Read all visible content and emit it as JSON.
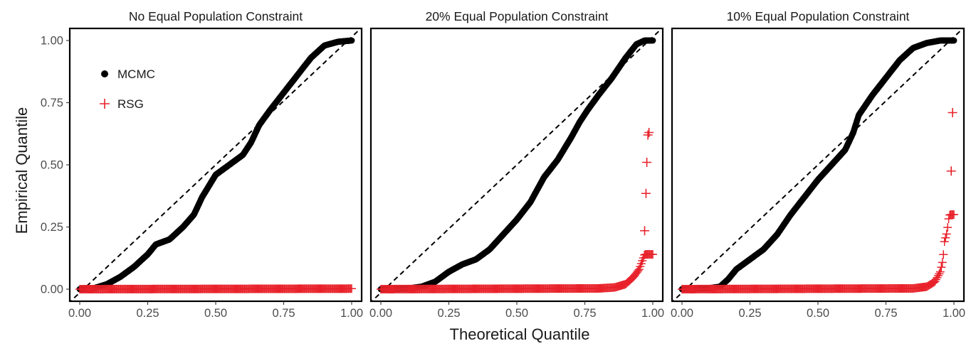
{
  "chart_data": {
    "type": "scatter",
    "xlabel": "Theoretical Quantile",
    "ylabel": "Empirical Quantile",
    "xlim": [
      0,
      1
    ],
    "ylim": [
      0,
      1
    ],
    "x_ticks": [
      "0.00",
      "0.25",
      "0.50",
      "0.75",
      "1.00"
    ],
    "y_ticks": [
      "0.00",
      "0.25",
      "0.50",
      "0.75",
      "1.00"
    ],
    "reference_line": "y = x (dashed)",
    "legend": {
      "position": "top-left inside first panel",
      "entries": [
        {
          "label": "MCMC",
          "color": "#000000",
          "marker": "filled-circle"
        },
        {
          "label": "RSG",
          "color": "#e8212a",
          "marker": "plus"
        }
      ]
    },
    "panels": [
      {
        "title": "No Equal Population Constraint",
        "series": [
          {
            "name": "MCMC",
            "color": "#000000",
            "curve": [
              [
                0,
                0
              ],
              [
                0.05,
                0.003
              ],
              [
                0.1,
                0.02
              ],
              [
                0.15,
                0.05
              ],
              [
                0.2,
                0.09
              ],
              [
                0.25,
                0.14
              ],
              [
                0.28,
                0.18
              ],
              [
                0.33,
                0.2
              ],
              [
                0.38,
                0.25
              ],
              [
                0.42,
                0.3
              ],
              [
                0.45,
                0.37
              ],
              [
                0.5,
                0.46
              ],
              [
                0.55,
                0.5
              ],
              [
                0.6,
                0.54
              ],
              [
                0.63,
                0.59
              ],
              [
                0.66,
                0.66
              ],
              [
                0.7,
                0.72
              ],
              [
                0.75,
                0.79
              ],
              [
                0.8,
                0.86
              ],
              [
                0.85,
                0.93
              ],
              [
                0.9,
                0.98
              ],
              [
                0.95,
                0.995
              ],
              [
                1.0,
                1.0
              ]
            ]
          },
          {
            "name": "RSG",
            "color": "#e8212a",
            "curve": [
              [
                0,
                0
              ],
              [
                0.999,
                0.002
              ],
              [
                1.0,
                0.002
              ]
            ]
          }
        ]
      },
      {
        "title": "20% Equal Population Constraint",
        "series": [
          {
            "name": "MCMC",
            "color": "#000000",
            "curve": [
              [
                0,
                0
              ],
              [
                0.1,
                0.003
              ],
              [
                0.15,
                0.01
              ],
              [
                0.2,
                0.03
              ],
              [
                0.25,
                0.07
              ],
              [
                0.3,
                0.1
              ],
              [
                0.35,
                0.12
              ],
              [
                0.4,
                0.16
              ],
              [
                0.45,
                0.22
              ],
              [
                0.5,
                0.28
              ],
              [
                0.55,
                0.35
              ],
              [
                0.6,
                0.45
              ],
              [
                0.65,
                0.52
              ],
              [
                0.7,
                0.61
              ],
              [
                0.73,
                0.67
              ],
              [
                0.76,
                0.72
              ],
              [
                0.8,
                0.78
              ],
              [
                0.85,
                0.85
              ],
              [
                0.9,
                0.93
              ],
              [
                0.94,
                0.985
              ],
              [
                0.97,
                1.0
              ],
              [
                1.0,
                1.0
              ]
            ]
          },
          {
            "name": "RSG",
            "color": "#e8212a",
            "curve": [
              [
                0,
                0
              ],
              [
                0.8,
                0.003
              ],
              [
                0.86,
                0.007
              ],
              [
                0.9,
                0.02
              ],
              [
                0.93,
                0.05
              ],
              [
                0.95,
                0.08
              ],
              [
                0.96,
                0.11
              ],
              [
                0.97,
                0.14
              ]
            ],
            "outliers": [
              [
                0.97,
                0.235
              ],
              [
                0.975,
                0.385
              ],
              [
                0.978,
                0.51
              ],
              [
                0.982,
                0.62
              ],
              [
                0.986,
                0.63
              ]
            ]
          }
        ]
      },
      {
        "title": "10% Equal Population Constraint",
        "series": [
          {
            "name": "MCMC",
            "color": "#000000",
            "curve": [
              [
                0,
                0
              ],
              [
                0.1,
                0.004
              ],
              [
                0.14,
                0.01
              ],
              [
                0.17,
                0.04
              ],
              [
                0.2,
                0.08
              ],
              [
                0.25,
                0.12
              ],
              [
                0.3,
                0.16
              ],
              [
                0.35,
                0.22
              ],
              [
                0.4,
                0.3
              ],
              [
                0.45,
                0.37
              ],
              [
                0.5,
                0.44
              ],
              [
                0.55,
                0.5
              ],
              [
                0.6,
                0.56
              ],
              [
                0.63,
                0.63
              ],
              [
                0.65,
                0.7
              ],
              [
                0.7,
                0.78
              ],
              [
                0.75,
                0.85
              ],
              [
                0.8,
                0.92
              ],
              [
                0.85,
                0.97
              ],
              [
                0.9,
                0.99
              ],
              [
                0.95,
                1.0
              ],
              [
                1.0,
                1.0
              ]
            ]
          },
          {
            "name": "RSG",
            "color": "#e8212a",
            "curve": [
              [
                0,
                0
              ],
              [
                0.85,
                0.003
              ],
              [
                0.9,
                0.01
              ],
              [
                0.93,
                0.03
              ],
              [
                0.95,
                0.07
              ],
              [
                0.96,
                0.12
              ],
              [
                0.965,
                0.19
              ],
              [
                0.975,
                0.23
              ],
              [
                0.98,
                0.28
              ],
              [
                0.985,
                0.3
              ]
            ],
            "outliers": [
              [
                0.99,
                0.475
              ],
              [
                0.995,
                0.71
              ]
            ]
          }
        ]
      }
    ]
  }
}
